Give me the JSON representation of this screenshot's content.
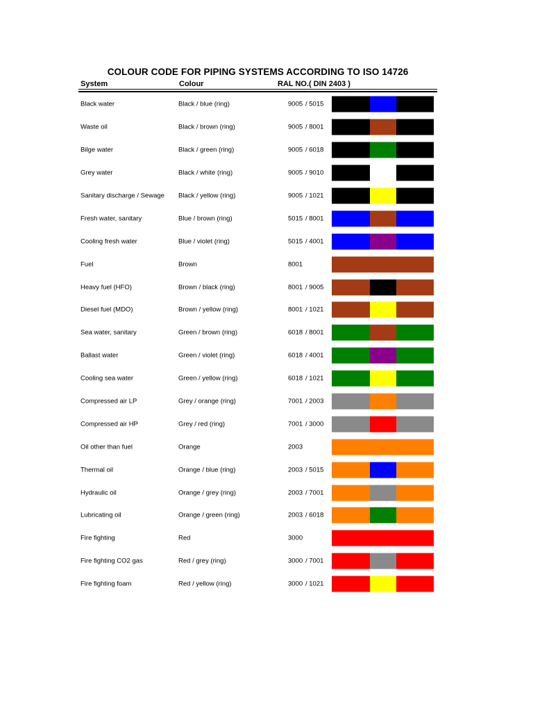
{
  "page": {
    "title": "COLOUR CODE FOR PIPING SYSTEMS ACCORDING TO ISO 14726"
  },
  "table": {
    "headers": {
      "system": "System",
      "colour": "Colour",
      "ral": "RAL NO.( DIN 2403 )"
    },
    "rows": [
      {
        "system": "Black water",
        "colour": "Black / blue (ring)",
        "ral_main": "9005",
        "ral_ring": "/ 5015",
        "main_hex": "#000000",
        "ring_hex": "#0000FF"
      },
      {
        "system": "Waste oil",
        "colour": "Black / brown (ring)",
        "ral_main": "9005",
        "ral_ring": "/ 8001",
        "main_hex": "#000000",
        "ring_hex": "#A33C14"
      },
      {
        "system": "Bilge water",
        "colour": "Black / green (ring)",
        "ral_main": "9005",
        "ral_ring": "/ 6018",
        "main_hex": "#000000",
        "ring_hex": "#008000"
      },
      {
        "system": "Grey water",
        "colour": "Black / white (ring)",
        "ral_main": "9005",
        "ral_ring": "/ 9010",
        "main_hex": "#000000",
        "ring_hex": "#FFFFFF"
      },
      {
        "system": "Sanitary discharge / Sewage",
        "colour": "Black / yellow (ring)",
        "ral_main": "9005",
        "ral_ring": "/ 1021",
        "main_hex": "#000000",
        "ring_hex": "#FFFF00"
      },
      {
        "system": "Fresh water, sanitary",
        "colour": "Blue / brown (ring)",
        "ral_main": "5015",
        "ral_ring": "/ 8001",
        "main_hex": "#0000FF",
        "ring_hex": "#A33C14"
      },
      {
        "system": "Cooling fresh water",
        "colour": "Blue / violet (ring)",
        "ral_main": "5015",
        "ral_ring": "/ 4001",
        "main_hex": "#0000FF",
        "ring_hex": "#8B008B"
      },
      {
        "system": "Fuel",
        "colour": "Brown",
        "ral_main": "8001",
        "ral_ring": "",
        "main_hex": "#A33C14",
        "ring_hex": null
      },
      {
        "system": "Heavy fuel (HFO)",
        "colour": "Brown / black (ring)",
        "ral_main": "8001",
        "ral_ring": "/ 9005",
        "main_hex": "#A33C14",
        "ring_hex": "#000000"
      },
      {
        "system": "Diesel fuel (MDO)",
        "colour": "Brown / yellow (ring)",
        "ral_main": "8001",
        "ral_ring": "/ 1021",
        "main_hex": "#A33C14",
        "ring_hex": "#FFFF00"
      },
      {
        "system": "Sea water, sanitary",
        "colour": "Green / brown (ring)",
        "ral_main": "6018",
        "ral_ring": "/ 8001",
        "main_hex": "#008000",
        "ring_hex": "#A33C14"
      },
      {
        "system": "Ballast water",
        "colour": "Green / violet (ring)",
        "ral_main": "6018",
        "ral_ring": "/ 4001",
        "main_hex": "#008000",
        "ring_hex": "#8B008B"
      },
      {
        "system": "Cooling sea water",
        "colour": "Green / yellow (ring)",
        "ral_main": "6018",
        "ral_ring": "/ 1021",
        "main_hex": "#008000",
        "ring_hex": "#FFFF00"
      },
      {
        "system": "Compressed air LP",
        "colour": "Grey / orange (ring)",
        "ral_main": "7001",
        "ral_ring": "/ 2003",
        "main_hex": "#8A8A8A",
        "ring_hex": "#FF8000"
      },
      {
        "system": "Compressed air HP",
        "colour": "Grey / red (ring)",
        "ral_main": "7001",
        "ral_ring": "/ 3000",
        "main_hex": "#8A8A8A",
        "ring_hex": "#FF0000"
      },
      {
        "system": "Oil other than fuel",
        "colour": "Orange",
        "ral_main": "2003",
        "ral_ring": "",
        "main_hex": "#FF8000",
        "ring_hex": null
      },
      {
        "system": "Thermal oil",
        "colour": "Orange / blue (ring)",
        "ral_main": "2003",
        "ral_ring": "/ 5015",
        "main_hex": "#FF8000",
        "ring_hex": "#0000FF"
      },
      {
        "system": "Hydraulic oil",
        "colour": "Orange / grey (ring)",
        "ral_main": "2003",
        "ral_ring": "/ 7001",
        "main_hex": "#FF8000",
        "ring_hex": "#8A8A8A"
      },
      {
        "system": "Lubricating oil",
        "colour": "Orange / green (ring)",
        "ral_main": "2003",
        "ral_ring": "/ 6018",
        "main_hex": "#FF8000",
        "ring_hex": "#008000"
      },
      {
        "system": "Fire fighting",
        "colour": "Red",
        "ral_main": "3000",
        "ral_ring": "",
        "main_hex": "#FF0000",
        "ring_hex": null
      },
      {
        "system": "Fire fighting CO2 gas",
        "colour": "Red / grey (ring)",
        "ral_main": "3000",
        "ral_ring": "/ 7001",
        "main_hex": "#FF0000",
        "ring_hex": "#8A8A8A"
      },
      {
        "system": "Fire fighting foam",
        "colour": "Red / yellow (ring)",
        "ral_main": "3000",
        "ral_ring": "/ 1021",
        "main_hex": "#FF0000",
        "ring_hex": "#FFFF00"
      }
    ]
  },
  "palette": {
    "black": "#000000",
    "blue": "#0000FF",
    "brown": "#A33C14",
    "green": "#008000",
    "grey": "#8A8A8A",
    "orange": "#FF8000",
    "red": "#FF0000",
    "yellow": "#FFFF00",
    "violet": "#8B008B",
    "white": "#FFFFFF",
    "text": "#000000",
    "page_background": "#FFFFFF"
  }
}
